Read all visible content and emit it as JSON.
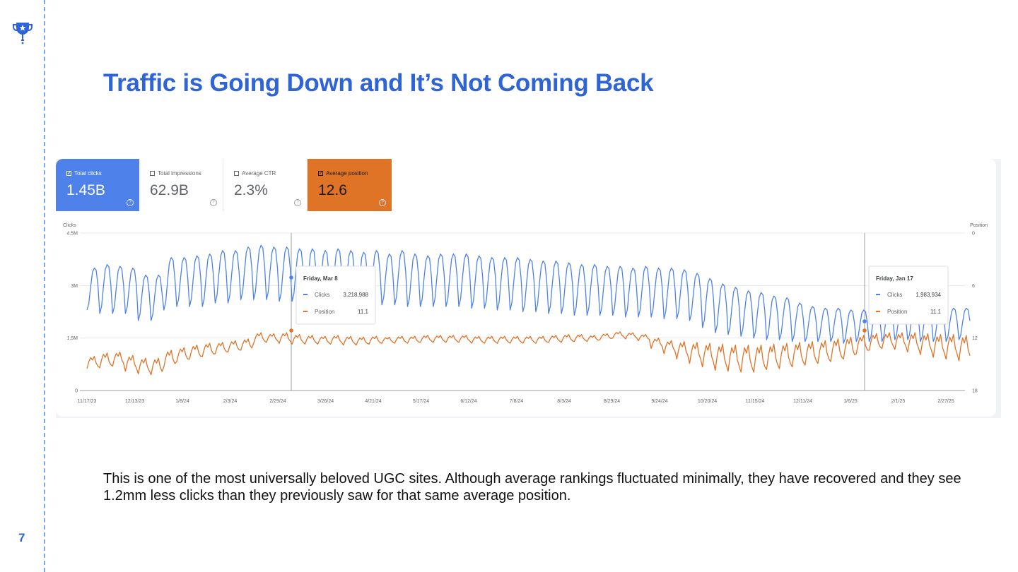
{
  "slide": {
    "title": "Traffic is Going Down and It’s Not Coming Back",
    "caption": "This is one of the most universally beloved UGC sites. Although average rankings fluctuated minimally, they have recovered and they see 1.2mm less clicks than they previously saw for that same average position.",
    "page_number": "7",
    "logo_icon": "trophy-icon",
    "accent_color": "#2f64d6"
  },
  "metrics": [
    {
      "label": "Total clicks",
      "value": "1.45B",
      "checked": true,
      "color": "#4e82ea"
    },
    {
      "label": "Total impressions",
      "value": "62.9B",
      "checked": false
    },
    {
      "label": "Average CTR",
      "value": "2.3%",
      "checked": false
    },
    {
      "label": "Average position",
      "value": "12.6",
      "checked": true,
      "color": "#df7326"
    }
  ],
  "chart_data": {
    "type": "line",
    "x_tick_labels": [
      "11/17/23",
      "12/13/23",
      "1/8/24",
      "2/3/24",
      "2/29/24",
      "3/26/24",
      "4/21/24",
      "5/17/24",
      "6/12/24",
      "7/8/24",
      "8/3/24",
      "8/29/24",
      "9/24/24",
      "10/20/24",
      "11/15/24",
      "12/11/24",
      "1/6/25",
      "2/1/25",
      "2/27/25"
    ],
    "y_left": {
      "label": "Clicks",
      "ticks": [
        "4.5M",
        "3M",
        "1.5M",
        "0"
      ],
      "range": [
        0,
        4500000
      ]
    },
    "y_right": {
      "label": "Position",
      "ticks": [
        "0",
        "6",
        "12",
        "18"
      ],
      "range": [
        0,
        18
      ],
      "inverted": true
    },
    "series": [
      {
        "name": "Clicks",
        "color": "#4e82ea",
        "weekly_high": [
          3500000,
          3600000,
          3550000,
          3500000,
          3300000,
          3300000,
          3800000,
          3800000,
          3850000,
          3900000,
          4000000,
          4000000,
          4100000,
          4150000,
          4100000,
          4100000,
          4050000,
          4050000,
          4000000,
          4050000,
          4000000,
          3950000,
          4000000,
          3900000,
          4000000,
          3900000,
          3850000,
          3900000,
          3900000,
          3900000,
          3850000,
          3800000,
          3800000,
          3800000,
          3750000,
          3700000,
          3700000,
          3650000,
          3600000,
          3600000,
          3550000,
          3550000,
          3500000,
          3550000,
          3500000,
          3500000,
          3450000,
          3350000,
          3200000,
          3050000,
          2950000,
          2850000,
          2800000,
          2700000,
          2650000,
          2500000,
          2400000,
          2350000,
          2350000,
          2300000,
          2300000,
          2350000,
          2400000,
          2450000,
          2400000,
          2400000,
          2350000,
          2350000,
          2350000
        ],
        "weekly_low": [
          2300000,
          2200000,
          2200000,
          2200000,
          2000000,
          2000000,
          2300000,
          2400000,
          2400000,
          2400000,
          2500000,
          2500000,
          2600000,
          2600000,
          2600000,
          2550000,
          2550000,
          2500000,
          2500000,
          2500000,
          2500000,
          2450000,
          2450000,
          2450000,
          2450000,
          2400000,
          2400000,
          2400000,
          2400000,
          2400000,
          2350000,
          2350000,
          2300000,
          2300000,
          2250000,
          2250000,
          2200000,
          2200000,
          2150000,
          2150000,
          2150000,
          2150000,
          2100000,
          2100000,
          2100000,
          2050000,
          2050000,
          2000000,
          1800000,
          1650000,
          1600000,
          1550000,
          1500000,
          1450000,
          1450000,
          1400000,
          1400000,
          1400000,
          1400000,
          1350000,
          1400000,
          1400000,
          1400000,
          1450000,
          1450000,
          1400000,
          1400000,
          1400000,
          1450000
        ]
      },
      {
        "name": "Position",
        "color": "#df7326",
        "weekly_best": [
          14.1,
          13.7,
          13.6,
          14.0,
          14.3,
          14.3,
          13.4,
          13.1,
          12.8,
          12.6,
          12.5,
          12.3,
          12.1,
          11.4,
          11.5,
          11.4,
          11.6,
          11.7,
          11.8,
          11.7,
          11.8,
          11.9,
          11.8,
          11.9,
          11.8,
          11.8,
          11.7,
          11.7,
          11.7,
          11.7,
          11.8,
          11.8,
          11.8,
          11.8,
          11.8,
          11.8,
          11.7,
          11.6,
          11.6,
          11.7,
          11.5,
          11.3,
          11.4,
          11.6,
          12.0,
          12.3,
          12.4,
          12.5,
          12.6,
          12.7,
          12.8,
          12.8,
          12.8,
          12.7,
          12.6,
          12.5,
          12.4,
          12.3,
          12.1,
          11.9,
          11.7,
          11.5,
          11.4,
          11.4,
          11.4,
          11.5,
          11.6,
          11.6,
          11.7
        ],
        "weekly_worst": [
          15.5,
          15.4,
          15.2,
          15.8,
          16.1,
          16.2,
          15.3,
          14.7,
          14.4,
          14.1,
          13.8,
          13.6,
          13.4,
          12.6,
          12.5,
          12.6,
          12.7,
          12.7,
          12.7,
          12.7,
          12.8,
          12.8,
          12.7,
          12.6,
          12.6,
          12.6,
          12.5,
          12.5,
          12.5,
          12.5,
          12.6,
          12.6,
          12.6,
          12.6,
          12.6,
          12.6,
          12.5,
          12.5,
          12.4,
          12.4,
          12.2,
          12.0,
          12.1,
          12.3,
          13.2,
          13.8,
          14.4,
          14.9,
          15.3,
          15.7,
          15.8,
          15.9,
          15.9,
          15.6,
          15.5,
          15.3,
          15.1,
          14.9,
          14.7,
          14.4,
          13.8,
          13.4,
          13.2,
          13.3,
          13.6,
          13.9,
          14.2,
          14.4,
          14.6
        ]
      }
    ],
    "tooltips": [
      {
        "date": "Friday, Mar 8",
        "rows": [
          {
            "name": "Clicks",
            "value": "3,218,988"
          },
          {
            "name": "Position",
            "value": "11.1"
          }
        ]
      },
      {
        "date": "Friday, Jan 17",
        "rows": [
          {
            "name": "Clicks",
            "value": "1,983,934"
          },
          {
            "name": "Position",
            "value": "11.1"
          }
        ]
      }
    ]
  }
}
